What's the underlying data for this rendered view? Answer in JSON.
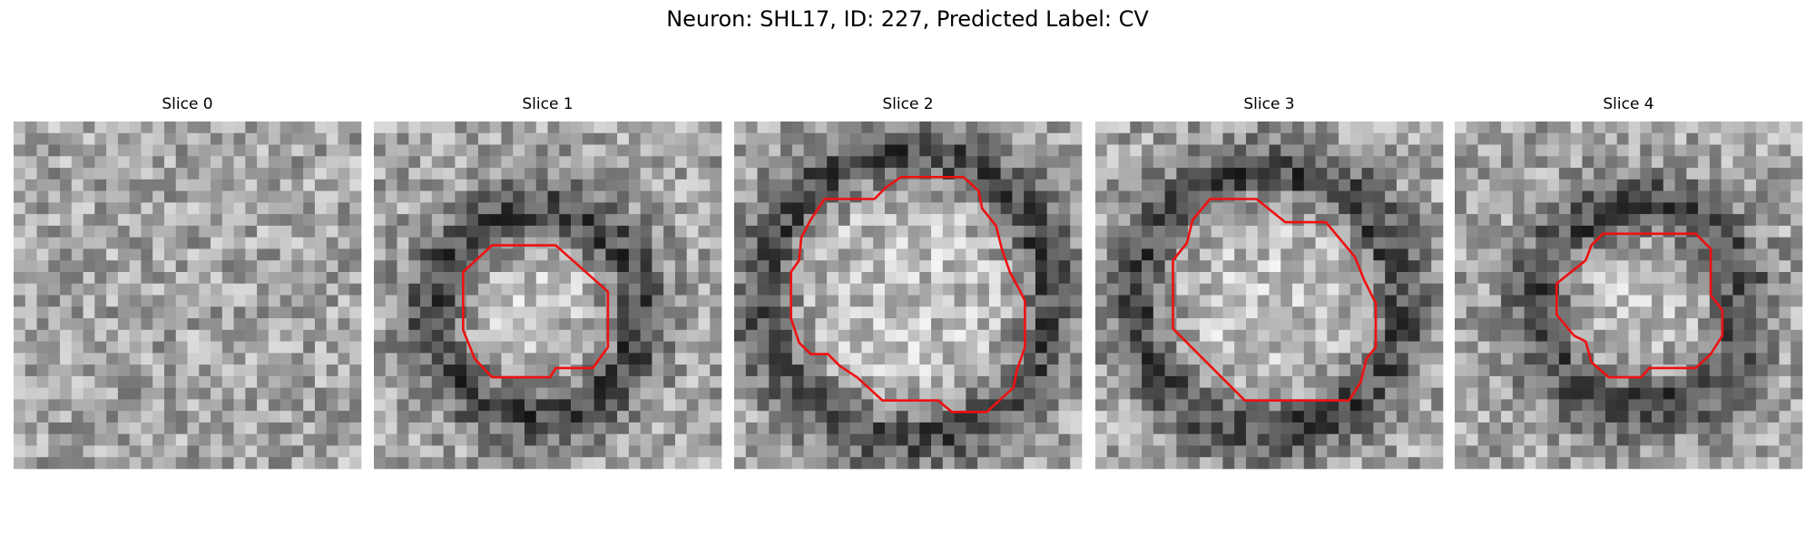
{
  "title": "Neuron: SHL17, ID: 227, Predicted Label: CV",
  "panels": [
    {
      "title": "Slice 0"
    },
    {
      "title": "Slice 1"
    },
    {
      "title": "Slice 2"
    },
    {
      "title": "Slice 3"
    },
    {
      "title": "Slice 4"
    }
  ]
}
